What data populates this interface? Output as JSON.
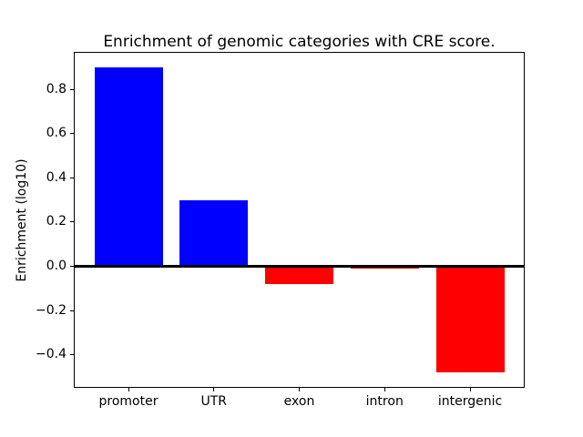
{
  "chart_data": {
    "type": "bar",
    "title": "Enrichment of genomic categories with CRE score.",
    "xlabel": "",
    "ylabel": "Enrichment (log10)",
    "categories": [
      "promoter",
      "UTR",
      "exon",
      "intron",
      "intergenic"
    ],
    "values": [
      0.9,
      0.3,
      -0.08,
      -0.01,
      -0.48
    ],
    "positive_color": "#0000ff",
    "negative_color": "#ff0000",
    "axis_color": "#000000",
    "background_color": "#ffffff",
    "ylim": [
      -0.549,
      0.969
    ],
    "ytick_values": [
      0.8,
      0.6,
      0.4,
      0.2,
      0.0,
      -0.2,
      -0.4
    ],
    "ytick_labels": [
      "0.8",
      "0.6",
      "0.4",
      "0.2",
      "0.0",
      "−0.2",
      "−0.4"
    ],
    "bar_width_fraction": 0.8,
    "grid": false,
    "legend": null,
    "zero_line": true
  }
}
